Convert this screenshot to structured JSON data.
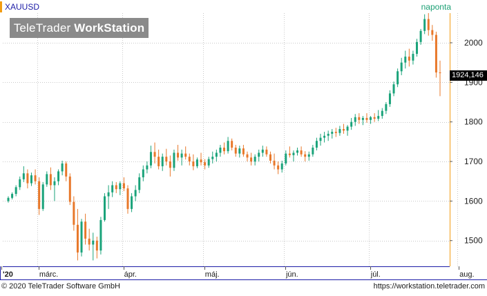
{
  "header": {
    "symbol": "XAUUSD",
    "period": "naponta"
  },
  "watermark": {
    "brand_regular": "TeleTrader",
    "brand_bold": "WorkStation"
  },
  "last_price_label": "1924,146",
  "footer": {
    "copyright": "© 2020 TeleTrader Software GmbH",
    "url": "https://workstation.teletrader.com"
  },
  "colors": {
    "up": "#1aa37a",
    "down": "#e8782a",
    "grid": "#c8c8c8",
    "axis": "#1a1aa6",
    "price_axis_accent": "#f39c12"
  },
  "chart_data": {
    "type": "candlestick",
    "title": "XAUUSD",
    "ylim": [
      1435,
      2075
    ],
    "yticks": [
      1500,
      1600,
      1700,
      1800,
      1900,
      2000
    ],
    "ytick_labels": [
      "1500",
      "1600",
      "1700",
      "1800",
      "1900",
      "2000"
    ],
    "x_tick_labels": [
      {
        "label": "'20",
        "index": 0
      },
      {
        "label": "márc.",
        "index": 8
      },
      {
        "label": "ápr.",
        "index": 30
      },
      {
        "label": "máj.",
        "index": 51
      },
      {
        "label": "jún.",
        "index": 72
      },
      {
        "label": "júl.",
        "index": 94
      },
      {
        "label": "aug.",
        "index": 117
      }
    ],
    "grid": true,
    "ohlc": [
      [
        1600,
        1612,
        1596,
        1608
      ],
      [
        1608,
        1622,
        1604,
        1618
      ],
      [
        1618,
        1640,
        1612,
        1635
      ],
      [
        1635,
        1662,
        1628,
        1655
      ],
      [
        1655,
        1688,
        1648,
        1670
      ],
      [
        1670,
        1680,
        1632,
        1645
      ],
      [
        1645,
        1672,
        1638,
        1665
      ],
      [
        1665,
        1680,
        1642,
        1650
      ],
      [
        1650,
        1660,
        1565,
        1580
      ],
      [
        1580,
        1648,
        1575,
        1642
      ],
      [
        1642,
        1675,
        1636,
        1668
      ],
      [
        1668,
        1685,
        1628,
        1640
      ],
      [
        1640,
        1660,
        1600,
        1650
      ],
      [
        1650,
        1680,
        1640,
        1675
      ],
      [
        1675,
        1702,
        1665,
        1695
      ],
      [
        1695,
        1700,
        1650,
        1662
      ],
      [
        1662,
        1670,
        1590,
        1598
      ],
      [
        1598,
        1612,
        1525,
        1540
      ],
      [
        1540,
        1580,
        1450,
        1470
      ],
      [
        1470,
        1555,
        1460,
        1548
      ],
      [
        1548,
        1568,
        1490,
        1505
      ],
      [
        1505,
        1530,
        1475,
        1490
      ],
      [
        1490,
        1520,
        1450,
        1500
      ],
      [
        1500,
        1510,
        1455,
        1475
      ],
      [
        1475,
        1560,
        1465,
        1552
      ],
      [
        1552,
        1620,
        1548,
        1612
      ],
      [
        1612,
        1640,
        1580,
        1622
      ],
      [
        1622,
        1650,
        1610,
        1640
      ],
      [
        1640,
        1648,
        1620,
        1630
      ],
      [
        1630,
        1650,
        1615,
        1645
      ],
      [
        1645,
        1660,
        1625,
        1632
      ],
      [
        1632,
        1640,
        1568,
        1580
      ],
      [
        1580,
        1620,
        1572,
        1612
      ],
      [
        1612,
        1640,
        1600,
        1628
      ],
      [
        1628,
        1670,
        1620,
        1660
      ],
      [
        1660,
        1690,
        1650,
        1680
      ],
      [
        1680,
        1700,
        1670,
        1690
      ],
      [
        1690,
        1740,
        1683,
        1724
      ],
      [
        1724,
        1748,
        1695,
        1712
      ],
      [
        1712,
        1730,
        1680,
        1688
      ],
      [
        1688,
        1720,
        1676,
        1712
      ],
      [
        1712,
        1732,
        1690,
        1700
      ],
      [
        1700,
        1715,
        1662,
        1684
      ],
      [
        1684,
        1730,
        1676,
        1722
      ],
      [
        1722,
        1742,
        1702,
        1710
      ],
      [
        1710,
        1730,
        1690,
        1720
      ],
      [
        1720,
        1738,
        1705,
        1712
      ],
      [
        1712,
        1720,
        1690,
        1700
      ],
      [
        1700,
        1718,
        1678,
        1688
      ],
      [
        1688,
        1710,
        1683,
        1705
      ],
      [
        1705,
        1722,
        1690,
        1698
      ],
      [
        1698,
        1706,
        1680,
        1690
      ],
      [
        1690,
        1712,
        1684,
        1706
      ],
      [
        1706,
        1725,
        1695,
        1712
      ],
      [
        1712,
        1730,
        1700,
        1722
      ],
      [
        1722,
        1742,
        1712,
        1735
      ],
      [
        1735,
        1748,
        1718,
        1726
      ],
      [
        1726,
        1762,
        1720,
        1752
      ],
      [
        1752,
        1758,
        1728,
        1735
      ],
      [
        1735,
        1742,
        1712,
        1720
      ],
      [
        1720,
        1740,
        1710,
        1733
      ],
      [
        1733,
        1742,
        1712,
        1718
      ],
      [
        1718,
        1725,
        1700,
        1710
      ],
      [
        1710,
        1722,
        1690,
        1700
      ],
      [
        1700,
        1718,
        1690,
        1712
      ],
      [
        1712,
        1730,
        1700,
        1722
      ],
      [
        1722,
        1740,
        1712,
        1730
      ],
      [
        1730,
        1738,
        1712,
        1718
      ],
      [
        1718,
        1725,
        1695,
        1702
      ],
      [
        1702,
        1720,
        1680,
        1690
      ],
      [
        1690,
        1700,
        1668,
        1680
      ],
      [
        1680,
        1702,
        1672,
        1695
      ],
      [
        1695,
        1728,
        1690,
        1720
      ],
      [
        1720,
        1738,
        1710,
        1716
      ],
      [
        1716,
        1728,
        1700,
        1722
      ],
      [
        1722,
        1735,
        1715,
        1728
      ],
      [
        1728,
        1738,
        1712,
        1718
      ],
      [
        1718,
        1726,
        1700,
        1712
      ],
      [
        1712,
        1725,
        1702,
        1718
      ],
      [
        1718,
        1742,
        1712,
        1735
      ],
      [
        1735,
        1760,
        1728,
        1752
      ],
      [
        1752,
        1770,
        1740,
        1760
      ],
      [
        1760,
        1775,
        1748,
        1765
      ],
      [
        1765,
        1778,
        1752,
        1770
      ],
      [
        1770,
        1782,
        1758,
        1775
      ],
      [
        1775,
        1785,
        1762,
        1772
      ],
      [
        1772,
        1790,
        1765,
        1782
      ],
      [
        1782,
        1795,
        1770,
        1778
      ],
      [
        1778,
        1792,
        1765,
        1788
      ],
      [
        1788,
        1810,
        1780,
        1800
      ],
      [
        1800,
        1820,
        1790,
        1812
      ],
      [
        1812,
        1822,
        1795,
        1805
      ],
      [
        1805,
        1815,
        1792,
        1810
      ],
      [
        1810,
        1822,
        1798,
        1805
      ],
      [
        1805,
        1815,
        1795,
        1812
      ],
      [
        1812,
        1822,
        1800,
        1808
      ],
      [
        1808,
        1830,
        1802,
        1815
      ],
      [
        1815,
        1835,
        1808,
        1828
      ],
      [
        1828,
        1850,
        1820,
        1845
      ],
      [
        1845,
        1880,
        1838,
        1872
      ],
      [
        1872,
        1902,
        1865,
        1895
      ],
      [
        1895,
        1935,
        1888,
        1928
      ],
      [
        1928,
        1962,
        1918,
        1950
      ],
      [
        1950,
        1980,
        1935,
        1965
      ],
      [
        1965,
        1985,
        1940,
        1955
      ],
      [
        1955,
        1980,
        1945,
        1972
      ],
      [
        1972,
        2010,
        1965,
        2002
      ],
      [
        2002,
        2035,
        1995,
        2030
      ],
      [
        2030,
        2072,
        2022,
        2060
      ],
      [
        2060,
        2075,
        2018,
        2032
      ],
      [
        2032,
        2045,
        2005,
        2020
      ],
      [
        2020,
        2028,
        1912,
        1925
      ],
      [
        1925,
        1955,
        1865,
        1924
      ]
    ]
  }
}
